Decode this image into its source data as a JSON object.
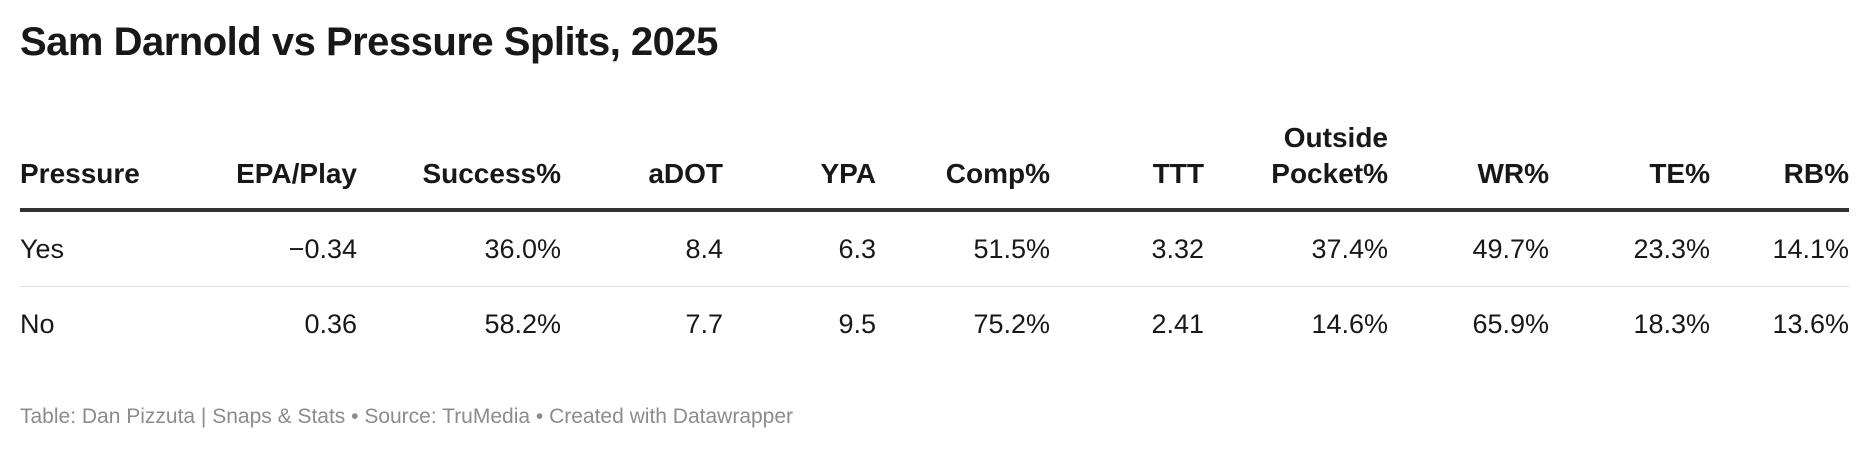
{
  "title": "Sam Darnold vs Pressure Splits, 2025",
  "footer": "Table: Dan Pizzuta | Snaps & Stats • Source: TruMedia • Created with Datawrapper",
  "chart_data": {
    "type": "table",
    "title": "Sam Darnold vs Pressure Splits, 2025",
    "columns": [
      {
        "label": "Pressure"
      },
      {
        "label": "EPA/Play"
      },
      {
        "label": "Success%"
      },
      {
        "label": "aDOT"
      },
      {
        "label": "YPA"
      },
      {
        "label": "Comp%"
      },
      {
        "label": "TTT"
      },
      {
        "label": "Outside Pocket%",
        "line1": "Outside",
        "line2": "Pocket%"
      },
      {
        "label": "WR%"
      },
      {
        "label": "TE%"
      },
      {
        "label": "RB%"
      }
    ],
    "rows": [
      [
        "Yes",
        "−0.34",
        "36.0%",
        "8.4",
        "6.3",
        "51.5%",
        "3.32",
        "37.4%",
        "49.7%",
        "23.3%",
        "14.1%"
      ],
      [
        "No",
        "0.36",
        "58.2%",
        "7.7",
        "9.5",
        "75.2%",
        "2.41",
        "14.6%",
        "65.9%",
        "18.3%",
        "13.6%"
      ]
    ]
  }
}
